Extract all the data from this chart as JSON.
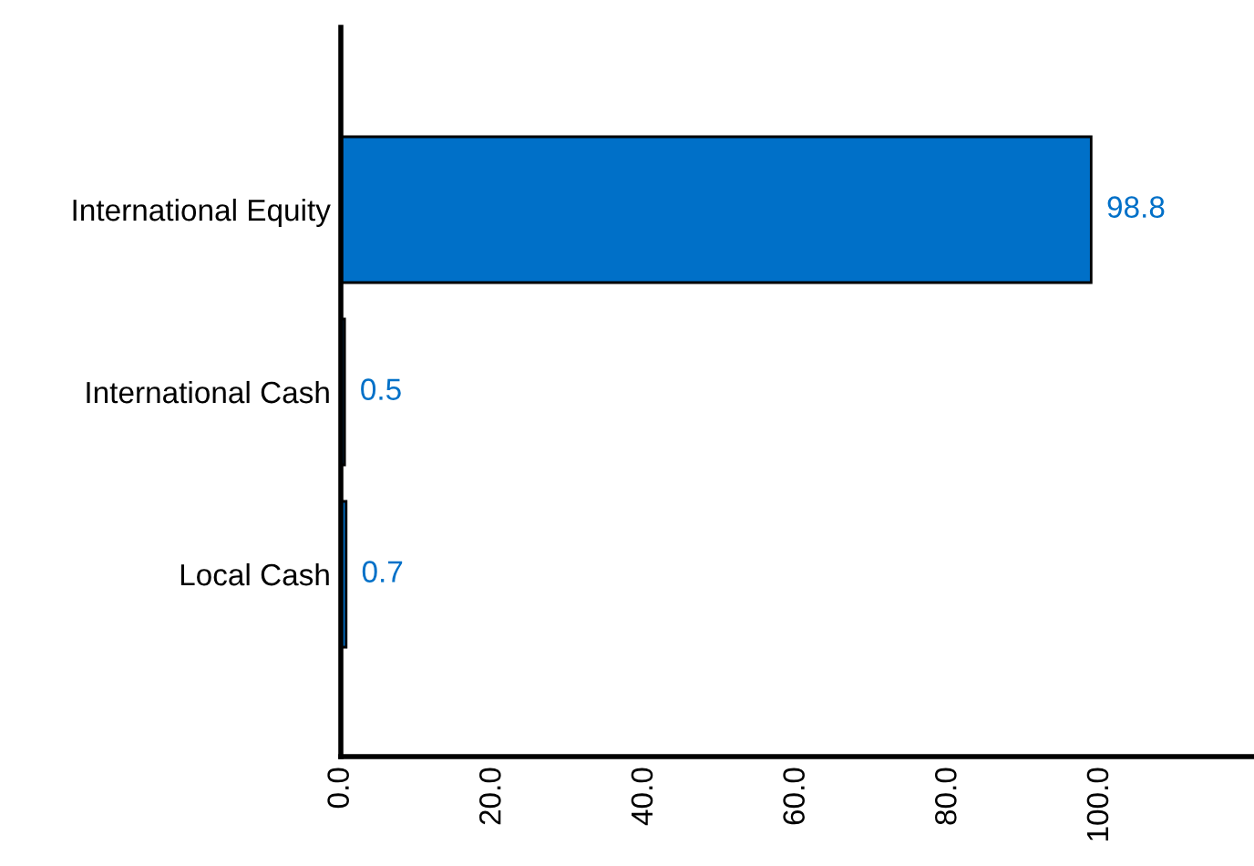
{
  "chart_data": {
    "type": "bar",
    "orientation": "horizontal",
    "categories": [
      "International Equity",
      "International Cash",
      "Local Cash"
    ],
    "values": [
      98.8,
      0.5,
      0.7
    ],
    "value_labels": [
      "98.8",
      "0.5",
      "0.7"
    ],
    "color": "#0070c8",
    "xlim": [
      0,
      120
    ],
    "xticks": [
      {
        "value": 0,
        "label": "0.0"
      },
      {
        "value": 20,
        "label": "20.0"
      },
      {
        "value": 40,
        "label": "40.0"
      },
      {
        "value": 60,
        "label": "60.0"
      },
      {
        "value": 80,
        "label": "80.0"
      },
      {
        "value": 100,
        "label": "100.0"
      }
    ],
    "grid": false
  }
}
